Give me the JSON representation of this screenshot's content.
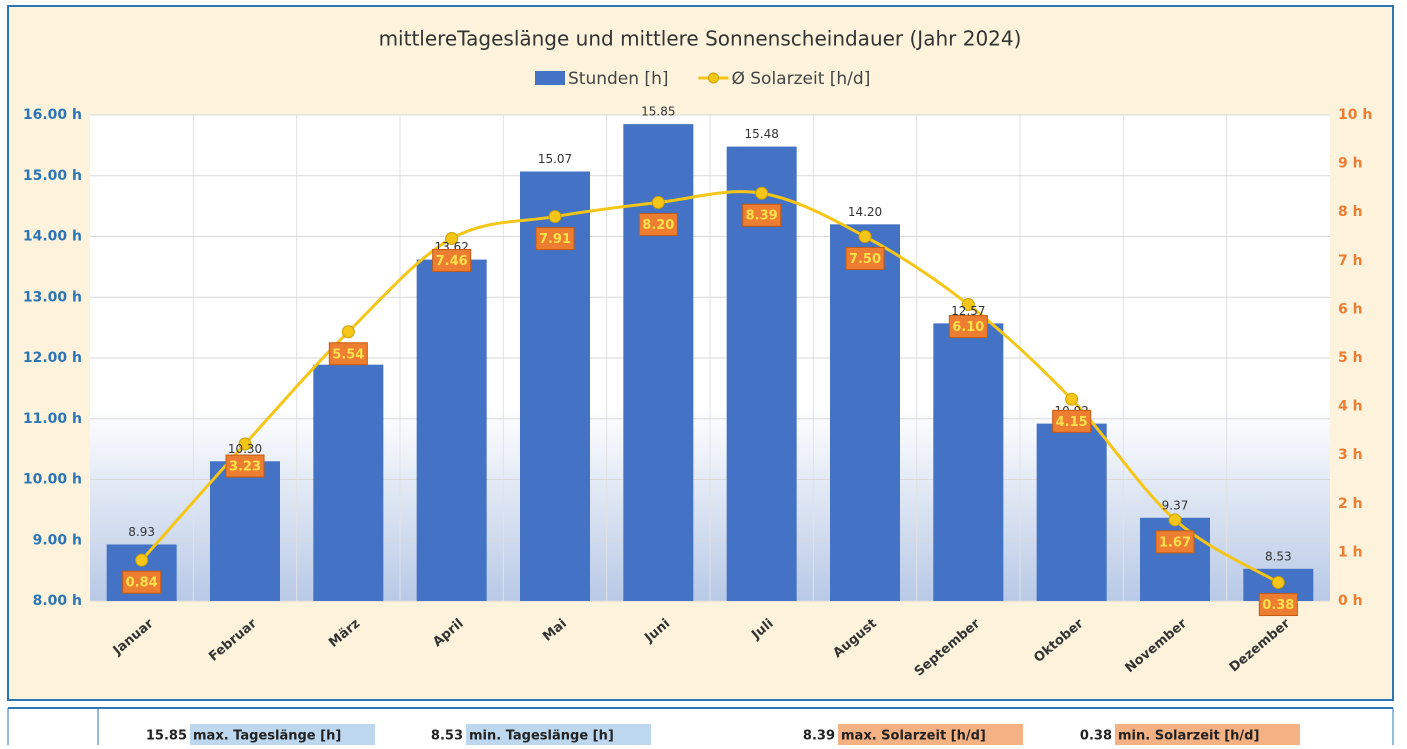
{
  "chart_data": {
    "type": "combo",
    "title": "mittlereTageslänge und mittlere Sonnenscheindauer (Jahr 2024)",
    "categories": [
      "Januar",
      "Februar",
      "März",
      "April",
      "Mai",
      "Juni",
      "Juli",
      "August",
      "September",
      "Oktober",
      "November",
      "Dezember"
    ],
    "series": [
      {
        "name": "Stunden [h]",
        "type": "bar",
        "color": "#4472c4",
        "values": [
          8.93,
          10.3,
          11.89,
          13.62,
          15.07,
          15.85,
          15.48,
          14.2,
          12.57,
          10.92,
          9.37,
          8.53
        ],
        "value_labels": [
          "8.93",
          "10.30",
          null,
          "13.62",
          "15.07",
          "15.85",
          "15.48",
          "14.20",
          "12.57",
          "10.92",
          "9.37",
          "8.53"
        ]
      },
      {
        "name": "Ø Solarzeit [h/d]",
        "type": "line",
        "axis": "y2",
        "color": "#f5c518",
        "values": [
          0.84,
          3.23,
          5.54,
          7.46,
          7.91,
          8.2,
          8.39,
          7.5,
          6.1,
          4.15,
          1.67,
          0.38
        ],
        "value_labels": [
          "0.84",
          "3.23",
          "5.54",
          "7.46",
          "7.91",
          "8.20",
          "8.39",
          "7.50",
          "6.10",
          "4.15",
          "1.67",
          "0.38"
        ]
      }
    ],
    "ylim": [
      8,
      16
    ],
    "yticks": [
      {
        "value": 8,
        "label": "8.00 h"
      },
      {
        "value": 9,
        "label": "9.00 h"
      },
      {
        "value": 10,
        "label": "10.00 h"
      },
      {
        "value": 11,
        "label": "11.00 h"
      },
      {
        "value": 12,
        "label": "12.00 h"
      },
      {
        "value": 13,
        "label": "13.00 h"
      },
      {
        "value": 14,
        "label": "14.00 h"
      },
      {
        "value": 15,
        "label": "15.00 h"
      },
      {
        "value": 16,
        "label": "16.00 h"
      }
    ],
    "y2lim": [
      0,
      10
    ],
    "y2ticks": [
      {
        "value": 0,
        "label": "0 h"
      },
      {
        "value": 1,
        "label": "1 h"
      },
      {
        "value": 2,
        "label": "2 h"
      },
      {
        "value": 3,
        "label": "3 h"
      },
      {
        "value": 4,
        "label": "4 h"
      },
      {
        "value": 5,
        "label": "5 h"
      },
      {
        "value": 6,
        "label": "6 h"
      },
      {
        "value": 7,
        "label": "7 h"
      },
      {
        "value": 8,
        "label": "8 h"
      },
      {
        "value": 9,
        "label": "9 h"
      },
      {
        "value": 10,
        "label": "10 h"
      }
    ],
    "grid": true,
    "legend": "top"
  },
  "summary": [
    {
      "value": "15.85",
      "label": "max. Tageslänge [h]"
    },
    {
      "value": "8.53",
      "label": "min. Tageslänge [h]"
    },
    {
      "value": "8.39",
      "label": "max. Solarzeit [h/d]"
    },
    {
      "value": "0.38",
      "label": "min. Solarzeit [h/d]"
    }
  ]
}
